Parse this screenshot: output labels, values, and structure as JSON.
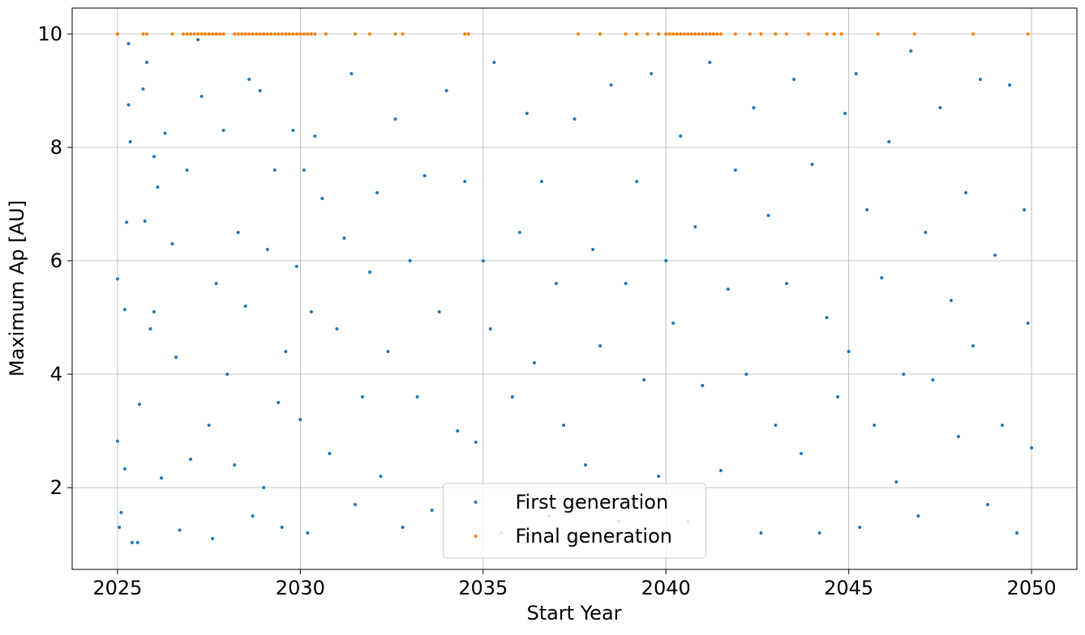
{
  "chart_data": {
    "type": "scatter",
    "xlabel": "Start Year",
    "ylabel": "Maximum Ap [AU]",
    "xlim": [
      2023.76,
      2051.24
    ],
    "ylim": [
      0.557,
      10.457
    ],
    "xticks": [
      2025,
      2030,
      2035,
      2040,
      2045,
      2050
    ],
    "yticks": [
      2,
      4,
      6,
      8,
      10
    ],
    "grid": true,
    "legend": "lower center",
    "series": [
      {
        "name": "First generation",
        "color": "#1f77b4",
        "x": [
          2025.0,
          2025.0,
          2025.05,
          2025.1,
          2025.2,
          2025.2,
          2025.25,
          2025.3,
          2025.3,
          2025.35,
          2025.4,
          2025.55,
          2025.6,
          2025.7,
          2025.75,
          2025.8,
          2025.9,
          2026.0,
          2026.0,
          2026.1,
          2026.2,
          2026.3,
          2026.5,
          2026.6,
          2026.7,
          2026.9,
          2027.0,
          2027.2,
          2027.3,
          2027.5,
          2027.6,
          2027.7,
          2027.9,
          2028.0,
          2028.2,
          2028.3,
          2028.5,
          2028.6,
          2028.7,
          2028.9,
          2029.0,
          2029.1,
          2029.3,
          2029.4,
          2029.5,
          2029.6,
          2029.8,
          2029.9,
          2030.0,
          2030.1,
          2030.2,
          2030.3,
          2030.4,
          2030.6,
          2030.8,
          2031.0,
          2031.2,
          2031.4,
          2031.5,
          2031.7,
          2031.9,
          2032.1,
          2032.2,
          2032.4,
          2032.6,
          2032.8,
          2033.0,
          2033.2,
          2033.4,
          2033.6,
          2033.8,
          2034.0,
          2034.3,
          2034.5,
          2034.8,
          2035.0,
          2035.2,
          2035.3,
          2035.5,
          2035.8,
          2036.0,
          2036.2,
          2036.4,
          2036.6,
          2036.8,
          2037.0,
          2037.2,
          2037.5,
          2037.8,
          2038.0,
          2038.2,
          2038.5,
          2038.7,
          2038.9,
          2039.2,
          2039.4,
          2039.6,
          2039.8,
          2040.0,
          2040.2,
          2040.4,
          2040.6,
          2040.8,
          2041.0,
          2041.2,
          2041.5,
          2041.7,
          2041.9,
          2042.2,
          2042.4,
          2042.6,
          2042.8,
          2043.0,
          2043.3,
          2043.5,
          2043.7,
          2044.0,
          2044.2,
          2044.4,
          2044.7,
          2044.9,
          2045.0,
          2045.2,
          2045.3,
          2045.5,
          2045.7,
          2045.9,
          2046.1,
          2046.3,
          2046.5,
          2046.7,
          2046.9,
          2047.1,
          2047.3,
          2047.5,
          2047.8,
          2048.0,
          2048.2,
          2048.4,
          2048.6,
          2048.8,
          2049.0,
          2049.2,
          2049.4,
          2049.6,
          2049.8,
          2049.9,
          2050.0
        ],
        "values": [
          5.68,
          2.82,
          1.3,
          1.56,
          2.33,
          5.14,
          6.68,
          8.75,
          9.83,
          8.1,
          1.03,
          1.03,
          3.47,
          9.03,
          6.7,
          9.5,
          4.8,
          5.1,
          7.84,
          7.3,
          2.17,
          8.25,
          6.3,
          4.3,
          1.25,
          7.6,
          2.5,
          9.9,
          8.9,
          3.1,
          1.1,
          5.6,
          8.3,
          4.0,
          2.4,
          6.5,
          5.2,
          9.2,
          1.5,
          9.0,
          2.0,
          6.2,
          7.6,
          3.5,
          1.3,
          4.4,
          8.3,
          5.9,
          3.2,
          7.6,
          1.2,
          5.1,
          8.2,
          7.1,
          2.6,
          4.8,
          6.4,
          9.3,
          1.7,
          3.6,
          5.8,
          7.2,
          2.2,
          4.4,
          8.5,
          1.3,
          6.0,
          3.6,
          7.5,
          1.6,
          5.1,
          9.0,
          3.0,
          7.4,
          2.8,
          6.0,
          4.8,
          9.5,
          1.2,
          3.6,
          6.5,
          8.6,
          4.2,
          7.4,
          1.5,
          5.6,
          3.1,
          8.5,
          2.4,
          6.2,
          4.5,
          9.1,
          1.4,
          5.6,
          7.4,
          3.9,
          9.3,
          2.2,
          6.0,
          4.9,
          8.2,
          1.4,
          6.6,
          3.8,
          9.5,
          2.3,
          5.5,
          7.6,
          4.0,
          8.7,
          1.2,
          6.8,
          3.1,
          5.6,
          9.2,
          2.6,
          7.7,
          1.2,
          5.0,
          3.6,
          8.6,
          4.4,
          9.3,
          1.3,
          6.9,
          3.1,
          5.7,
          8.1,
          2.1,
          4.0,
          9.7,
          1.5,
          6.5,
          3.9,
          8.7,
          5.3,
          2.9,
          7.2,
          4.5,
          9.2,
          1.7,
          6.1,
          3.1,
          9.1,
          1.2,
          6.9,
          4.9,
          2.7
        ]
      },
      {
        "name": "Final generation",
        "color": "#ff7f0e",
        "x": [
          2025.0,
          2025.7,
          2025.8,
          2026.5,
          2026.8,
          2026.9,
          2027.0,
          2027.1,
          2027.2,
          2027.3,
          2027.4,
          2027.5,
          2027.6,
          2027.7,
          2027.8,
          2027.9,
          2028.2,
          2028.3,
          2028.4,
          2028.5,
          2028.6,
          2028.7,
          2028.8,
          2028.9,
          2029.0,
          2029.1,
          2029.2,
          2029.3,
          2029.4,
          2029.5,
          2029.6,
          2029.7,
          2029.8,
          2029.9,
          2030.0,
          2030.1,
          2030.2,
          2030.3,
          2030.4,
          2030.7,
          2031.5,
          2031.9,
          2032.6,
          2032.8,
          2034.5,
          2034.6,
          2037.6,
          2038.2,
          2038.9,
          2039.2,
          2039.5,
          2039.8,
          2040.0,
          2040.1,
          2040.2,
          2040.3,
          2040.4,
          2040.5,
          2040.6,
          2040.7,
          2040.8,
          2040.9,
          2041.0,
          2041.1,
          2041.2,
          2041.3,
          2041.4,
          2041.5,
          2041.9,
          2042.3,
          2042.6,
          2043.0,
          2043.3,
          2043.9,
          2044.4,
          2044.6,
          2044.8,
          2045.8,
          2046.8,
          2048.4,
          2049.9
        ],
        "values": [
          10,
          10,
          10,
          10,
          10,
          10,
          10,
          10,
          10,
          10,
          10,
          10,
          10,
          10,
          10,
          10,
          10,
          10,
          10,
          10,
          10,
          10,
          10,
          10,
          10,
          10,
          10,
          10,
          10,
          10,
          10,
          10,
          10,
          10,
          10,
          10,
          10,
          10,
          10,
          10,
          10,
          10,
          10,
          10,
          10,
          10,
          10,
          10,
          10,
          10,
          10,
          10,
          10,
          10,
          10,
          10,
          10,
          10,
          10,
          10,
          10,
          10,
          10,
          10,
          10,
          10,
          10,
          10,
          10,
          10,
          10,
          10,
          10,
          10,
          10,
          10,
          10,
          10,
          10,
          10,
          10
        ]
      }
    ]
  }
}
